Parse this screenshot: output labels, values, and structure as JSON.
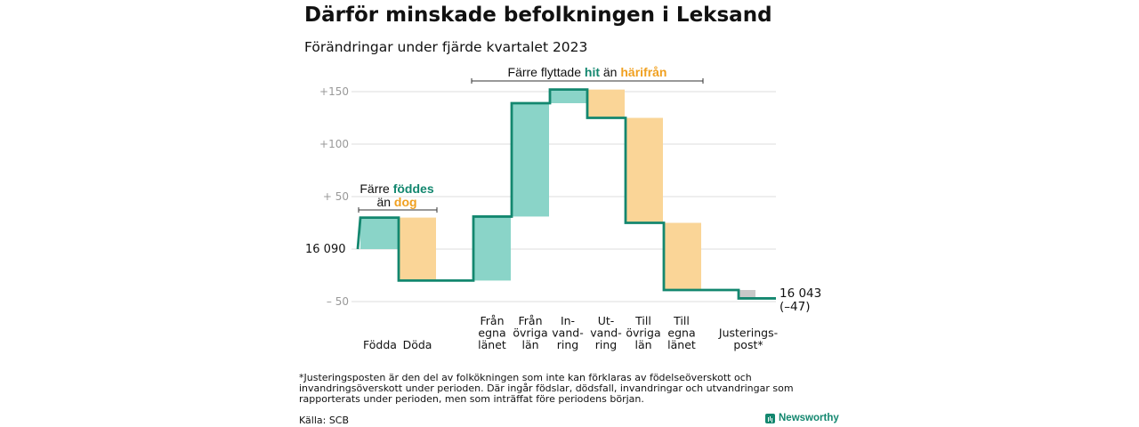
{
  "title": "Därför minskade befolkningen i Leksand",
  "subtitle": "Förändringar under fjärde kvartalet 2023",
  "chart_data": {
    "type": "waterfall",
    "base": 16090,
    "base_label": "16  090",
    "y_ticks": [
      {
        "value": 150,
        "label": "+150"
      },
      {
        "value": 100,
        "label": "+100"
      },
      {
        "value": 50,
        "label": "+  50"
      },
      {
        "value": 0,
        "label": ""
      },
      {
        "value": -50,
        "label": "–  50"
      }
    ],
    "ylim": [
      -55,
      160
    ],
    "steps": [
      {
        "label": [
          "Födda"
        ],
        "from": 0,
        "to": 30,
        "kind": "positive"
      },
      {
        "label": [
          "Döda"
        ],
        "from": 30,
        "to": -30,
        "kind": "negative"
      },
      {
        "label": [
          "Från",
          "egna",
          "länet"
        ],
        "from": -30,
        "to": 31,
        "kind": "positive"
      },
      {
        "label": [
          "Från",
          "övriga",
          "län"
        ],
        "from": 31,
        "to": 139,
        "kind": "positive"
      },
      {
        "label": [
          "In-",
          "vand-",
          "ring"
        ],
        "from": 139,
        "to": 152,
        "kind": "positive"
      },
      {
        "label": [
          "Ut-",
          "vand-",
          "ring"
        ],
        "from": 152,
        "to": 125,
        "kind": "negative"
      },
      {
        "label": [
          "Till",
          "övriga",
          "län"
        ],
        "from": 125,
        "to": 25,
        "kind": "negative"
      },
      {
        "label": [
          "Till",
          "egna",
          "länet"
        ],
        "from": 25,
        "to": -39,
        "kind": "negative"
      },
      {
        "label": [
          "Justerings-",
          "post*"
        ],
        "from": -39,
        "to": -47,
        "kind": "adjustment"
      }
    ],
    "end_label": [
      "16 043",
      "(–47)"
    ],
    "annotations": {
      "births": {
        "prefix": "Färre",
        "hl1": "föddes",
        "mid": "än",
        "hl2": "dog"
      },
      "migration": {
        "prefix": "Färre flyttade",
        "hl1": "hit",
        "mid": "än",
        "hl2": "härifrån"
      }
    },
    "colors": {
      "positive": "#8ad4c8",
      "negative": "#fad597",
      "adjustment": "#c8c8c8",
      "line": "#13876f",
      "hl_positive": "#13876f",
      "hl_negative": "#f0a020",
      "grid": "#dddddd"
    }
  },
  "footnote": "*Justeringsposten är den del av folkökningen som inte kan förklaras av födelseöverskott och invandringsöverskott under perioden. Där ingår födslar, dödsfall, invandringar och utvandringar som rapporterats under perioden, men som inträffat före periodens början.",
  "source": "Källa: SCB",
  "brand": "Newsworthy"
}
